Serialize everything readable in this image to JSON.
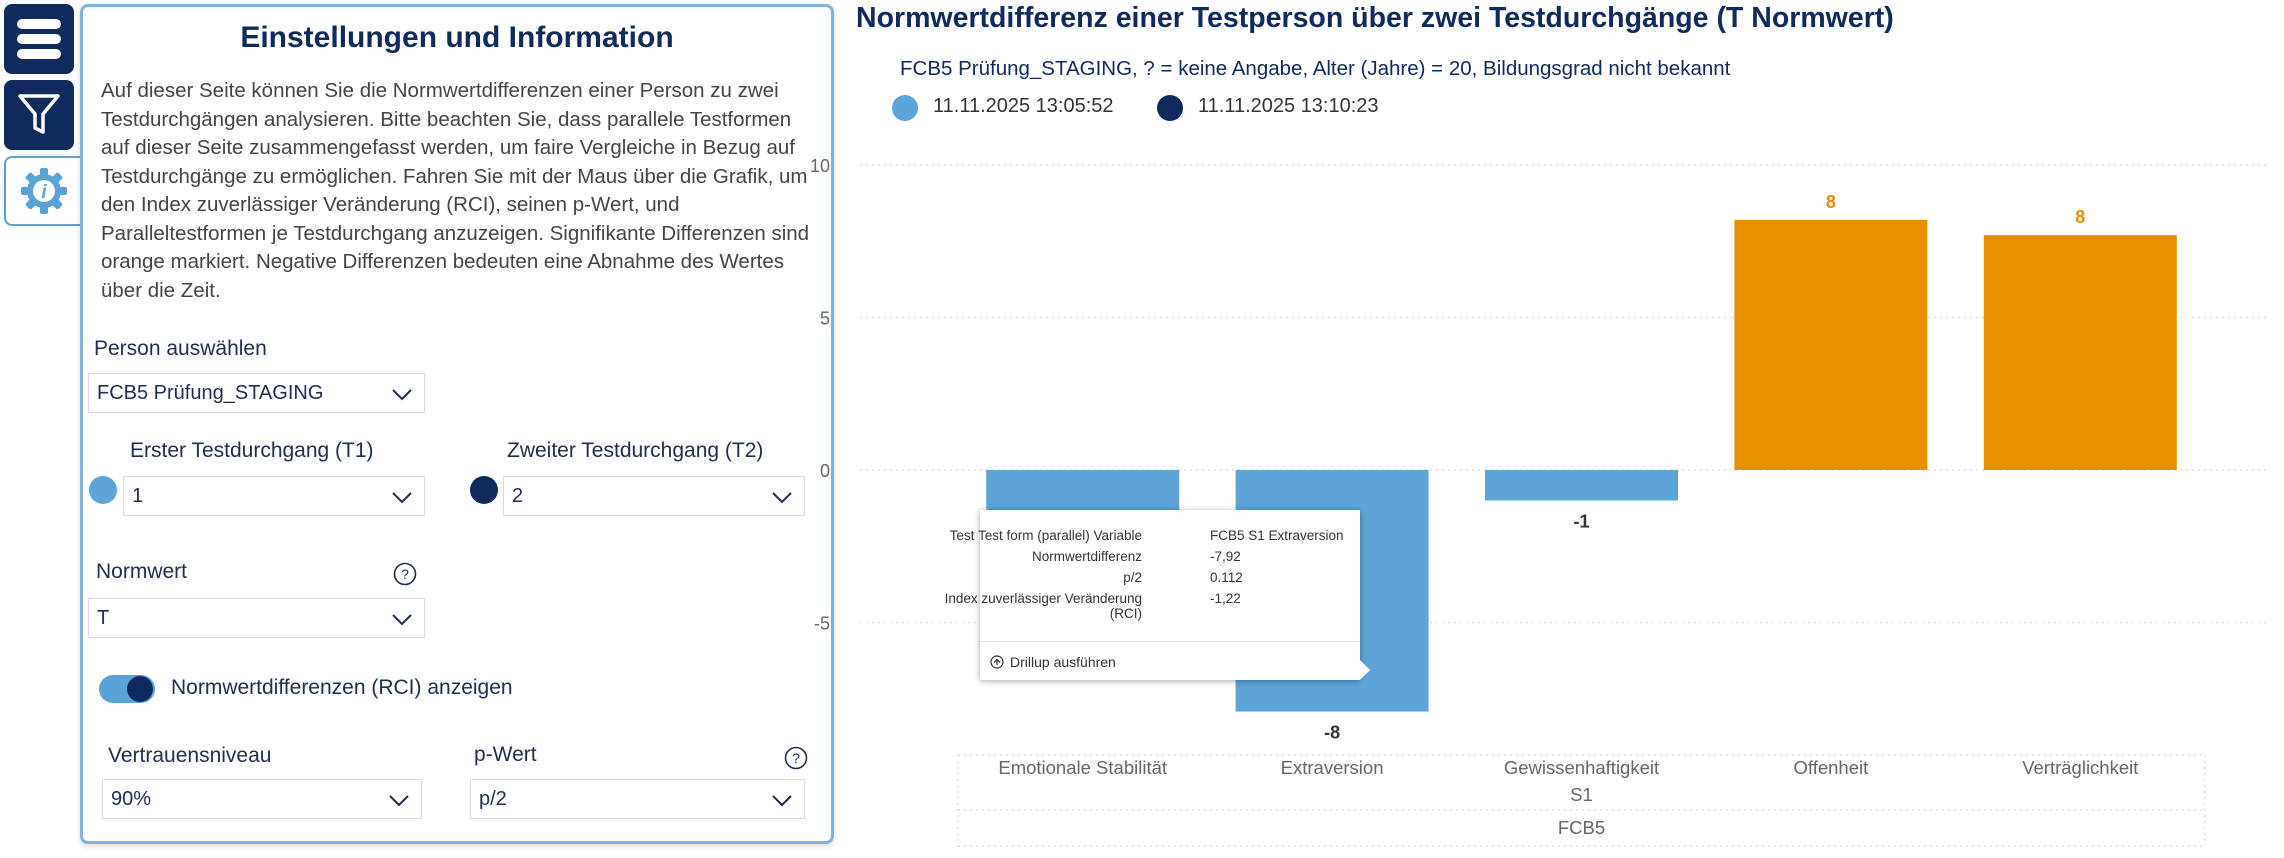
{
  "rail": {
    "icons": [
      "menu-icon",
      "filter-icon",
      "info-icon"
    ]
  },
  "panel": {
    "title": "Einstellungen und Information",
    "description": "Auf dieser Seite können Sie die Normwertdifferenzen einer Person zu zwei Testdurchgängen analysieren. Bitte beachten Sie, dass parallele Testformen auf dieser Seite zusammengefasst werden, um faire Vergleiche in Bezug auf Testdurchgänge zu ermöglichen. Fahren Sie mit der Maus über die Grafik, um den Index zuverlässiger Veränderung (RCI), seinen p-Wert, und Paralleltestformen je Testdurchgang anzuzeigen. Signifikante Differenzen sind orange markiert. Negative Differenzen bedeuten eine Abnahme des Wertes über die Zeit.",
    "person_label": "Person auswählen",
    "person_value": "FCB5 Prüfung_STAGING",
    "t1_label": "Erster Testdurchgang (T1)",
    "t1_value": "1",
    "t2_label": "Zweiter Testdurchgang (T2)",
    "t2_value": "2",
    "norm_label": "Normwert",
    "norm_value": "T",
    "toggle_label": "Normwertdifferenzen (RCI) anzeigen",
    "toggle_on": true,
    "confidence_label": "Vertrauensniveau",
    "confidence_value": "90%",
    "pvalue_label": "p-Wert",
    "pvalue_value": "p/2"
  },
  "colors": {
    "t1": "#5ea4d6",
    "t2": "#0f2a5c",
    "significant": "#e88f00",
    "normal_bar": "#5ea4d6"
  },
  "chart": {
    "title": "Normwertdifferenz einer Testperson über zwei Testdurchgänge (T Normwert)",
    "subtitle": "FCB5 Prüfung_STAGING, ? = keine Angabe, Alter (Jahre) = 20, Bildungsgrad nicht bekannt",
    "legend": [
      {
        "label": "11.11.2025 13:05:52",
        "color": "#5ea4d6"
      },
      {
        "label": "11.11.2025 13:10:23",
        "color": "#0f2a5c"
      }
    ]
  },
  "chart_data": {
    "type": "bar",
    "title": "Normwertdifferenz einer Testperson über zwei Testdurchgänge (T Normwert)",
    "categories": [
      "Emotionale Stabilität",
      "Extraversion",
      "Gewissenhaftigkeit",
      "Offenheit",
      "Verträglichkeit"
    ],
    "values": [
      -6.5,
      -7.92,
      -1,
      8.2,
      7.7
    ],
    "data_labels": [
      "",
      "-8",
      "-1",
      "8",
      "8"
    ],
    "significant": [
      false,
      false,
      false,
      true,
      true
    ],
    "group_level_1": "S1",
    "group_level_2": "FCB5",
    "yticks": [
      10,
      5,
      0,
      -5
    ],
    "ylim": [
      -8.5,
      10
    ],
    "grid": true
  },
  "tooltip": {
    "rows": [
      {
        "key": "Test Test form (parallel) Variable",
        "value": "FCB5 S1 Extraversion"
      },
      {
        "key": "Normwertdifferenz",
        "value": "-7,92"
      },
      {
        "key": "p/2",
        "value": "0.112"
      },
      {
        "key": "Index zuverlässiger Veränderung (RCI)",
        "value": "-1,22"
      }
    ],
    "action": "Drillup ausführen"
  }
}
